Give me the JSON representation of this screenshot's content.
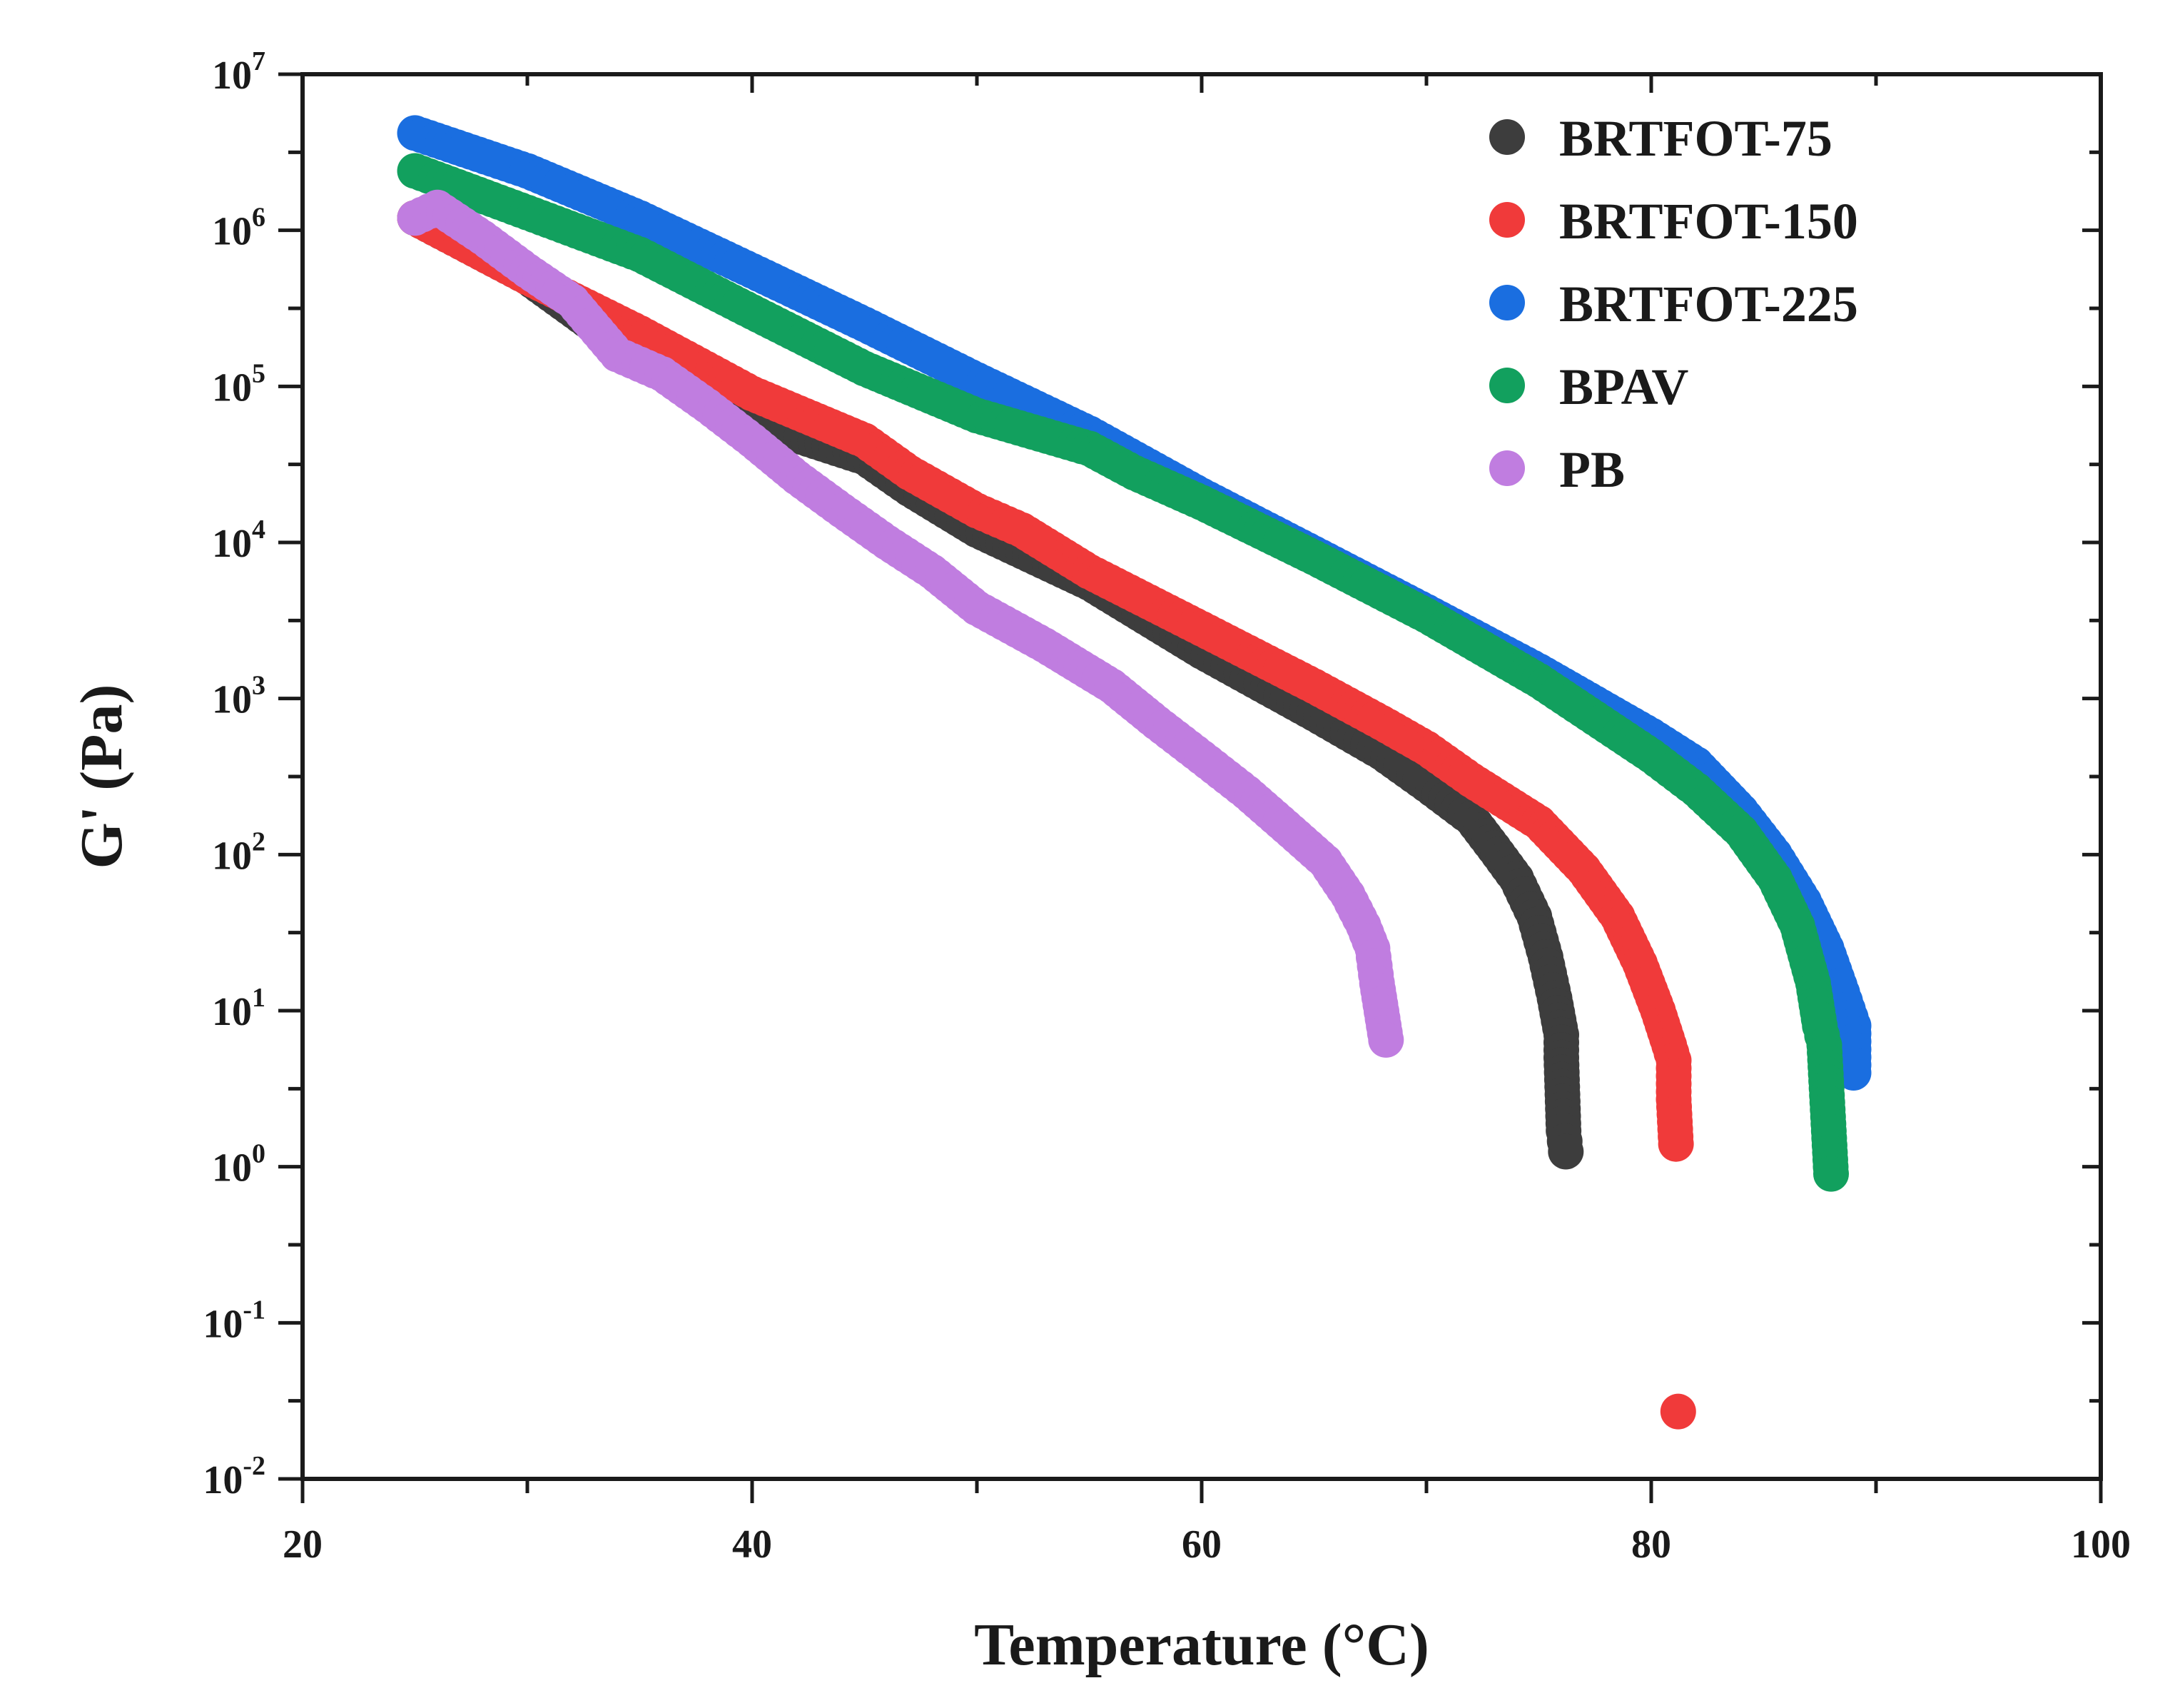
{
  "chart_data": {
    "type": "scatter",
    "title": "",
    "xlabel": "Temperature (°C)",
    "ylabel": "G' (Pa)",
    "xlim": [
      20,
      100
    ],
    "ylim": [
      0.01,
      10000000
    ],
    "yscale": "log",
    "x_ticks": [
      20,
      40,
      60,
      80,
      100
    ],
    "x_tick_labels": [
      "20",
      "40",
      "60",
      "80",
      "100"
    ],
    "y_ticks": [
      0.01,
      0.1,
      1,
      10,
      100,
      1000,
      10000,
      100000,
      1000000,
      10000000
    ],
    "y_tick_labels": [
      {
        "base": "10",
        "exp": "-2"
      },
      {
        "base": "10",
        "exp": "-1"
      },
      {
        "base": "10",
        "exp": "0"
      },
      {
        "base": "10",
        "exp": "1"
      },
      {
        "base": "10",
        "exp": "2"
      },
      {
        "base": "10",
        "exp": "3"
      },
      {
        "base": "10",
        "exp": "4"
      },
      {
        "base": "10",
        "exp": "5"
      },
      {
        "base": "10",
        "exp": "6"
      },
      {
        "base": "10",
        "exp": "7"
      }
    ],
    "legend_position": "top-right",
    "series": [
      {
        "name": "BRTFOT-75",
        "color": "#3d3d3d",
        "points": [
          [
            25,
            1200000
          ],
          [
            30,
            500000
          ],
          [
            35,
            150000
          ],
          [
            40,
            60000
          ],
          [
            45,
            35000
          ],
          [
            47,
            22000
          ],
          [
            50,
            12000
          ],
          [
            55,
            5500
          ],
          [
            60,
            2000
          ],
          [
            65,
            800
          ],
          [
            68,
            450
          ],
          [
            70,
            280
          ],
          [
            72,
            170
          ],
          [
            73,
            110
          ],
          [
            74,
            70
          ],
          [
            74.8,
            40
          ],
          [
            75.3,
            22
          ],
          [
            75.7,
            12
          ],
          [
            76,
            7
          ],
          [
            76,
            5
          ],
          [
            76.1,
            1.7
          ],
          [
            76.2,
            1.25
          ]
        ]
      },
      {
        "name": "BRTFOT-150",
        "color": "#f03a3a",
        "points": [
          [
            25,
            1200000
          ],
          [
            30,
            500000
          ],
          [
            35,
            220000
          ],
          [
            40,
            90000
          ],
          [
            45,
            45000
          ],
          [
            47,
            28000
          ],
          [
            50,
            16000
          ],
          [
            52,
            12000
          ],
          [
            55,
            6500
          ],
          [
            60,
            2800
          ],
          [
            65,
            1200
          ],
          [
            68,
            700
          ],
          [
            70,
            480
          ],
          [
            72,
            300
          ],
          [
            75,
            160
          ],
          [
            77,
            80
          ],
          [
            78.5,
            40
          ],
          [
            79.5,
            20
          ],
          [
            80.3,
            10
          ],
          [
            80.8,
            6
          ],
          [
            81,
            4.8
          ],
          [
            81,
            2.7
          ],
          [
            81.1,
            1.4
          ],
          [
            81.2,
            0.027
          ]
        ]
      },
      {
        "name": "BRTFOT-225",
        "color": "#1a6ee0",
        "points": [
          [
            25,
            4200000
          ],
          [
            30,
            2400000
          ],
          [
            35,
            1200000
          ],
          [
            40,
            550000
          ],
          [
            45,
            250000
          ],
          [
            50,
            110000
          ],
          [
            55,
            50000
          ],
          [
            60,
            20000
          ],
          [
            65,
            8500
          ],
          [
            70,
            3600
          ],
          [
            75,
            1500
          ],
          [
            80,
            580
          ],
          [
            82,
            380
          ],
          [
            84,
            190
          ],
          [
            85.5,
            100
          ],
          [
            86.8,
            50
          ],
          [
            87.8,
            25
          ],
          [
            88.5,
            13
          ],
          [
            89,
            8
          ],
          [
            89,
            4
          ]
        ]
      },
      {
        "name": "BPAV",
        "color": "#12a05e",
        "points": [
          [
            25,
            2400000
          ],
          [
            30,
            1300000
          ],
          [
            35,
            700000
          ],
          [
            40,
            300000
          ],
          [
            45,
            130000
          ],
          [
            50,
            65000
          ],
          [
            55,
            40000
          ],
          [
            57,
            28000
          ],
          [
            60,
            18000
          ],
          [
            65,
            8000
          ],
          [
            70,
            3400
          ],
          [
            75,
            1300
          ],
          [
            80,
            430
          ],
          [
            82,
            260
          ],
          [
            84,
            140
          ],
          [
            85.5,
            70
          ],
          [
            86.5,
            35
          ],
          [
            87.2,
            15
          ],
          [
            87.5,
            8
          ],
          [
            87.7,
            6
          ],
          [
            88,
            0.9
          ]
        ]
      },
      {
        "name": "PB",
        "color": "#c07de0",
        "points": [
          [
            25,
            1200000
          ],
          [
            26,
            1400000
          ],
          [
            28,
            900000
          ],
          [
            30,
            550000
          ],
          [
            32,
            350000
          ],
          [
            34,
            160000
          ],
          [
            36,
            120000
          ],
          [
            38,
            75000
          ],
          [
            40,
            45000
          ],
          [
            42,
            26000
          ],
          [
            44,
            16000
          ],
          [
            46,
            10000
          ],
          [
            48,
            6500
          ],
          [
            50,
            3800
          ],
          [
            53,
            2200
          ],
          [
            56,
            1200
          ],
          [
            58,
            700
          ],
          [
            60,
            420
          ],
          [
            62,
            250
          ],
          [
            64,
            140
          ],
          [
            65.5,
            90
          ],
          [
            66.5,
            55
          ],
          [
            67.2,
            35
          ],
          [
            67.6,
            25
          ],
          [
            67.8,
            15
          ],
          [
            68.2,
            6.5
          ]
        ]
      }
    ]
  }
}
